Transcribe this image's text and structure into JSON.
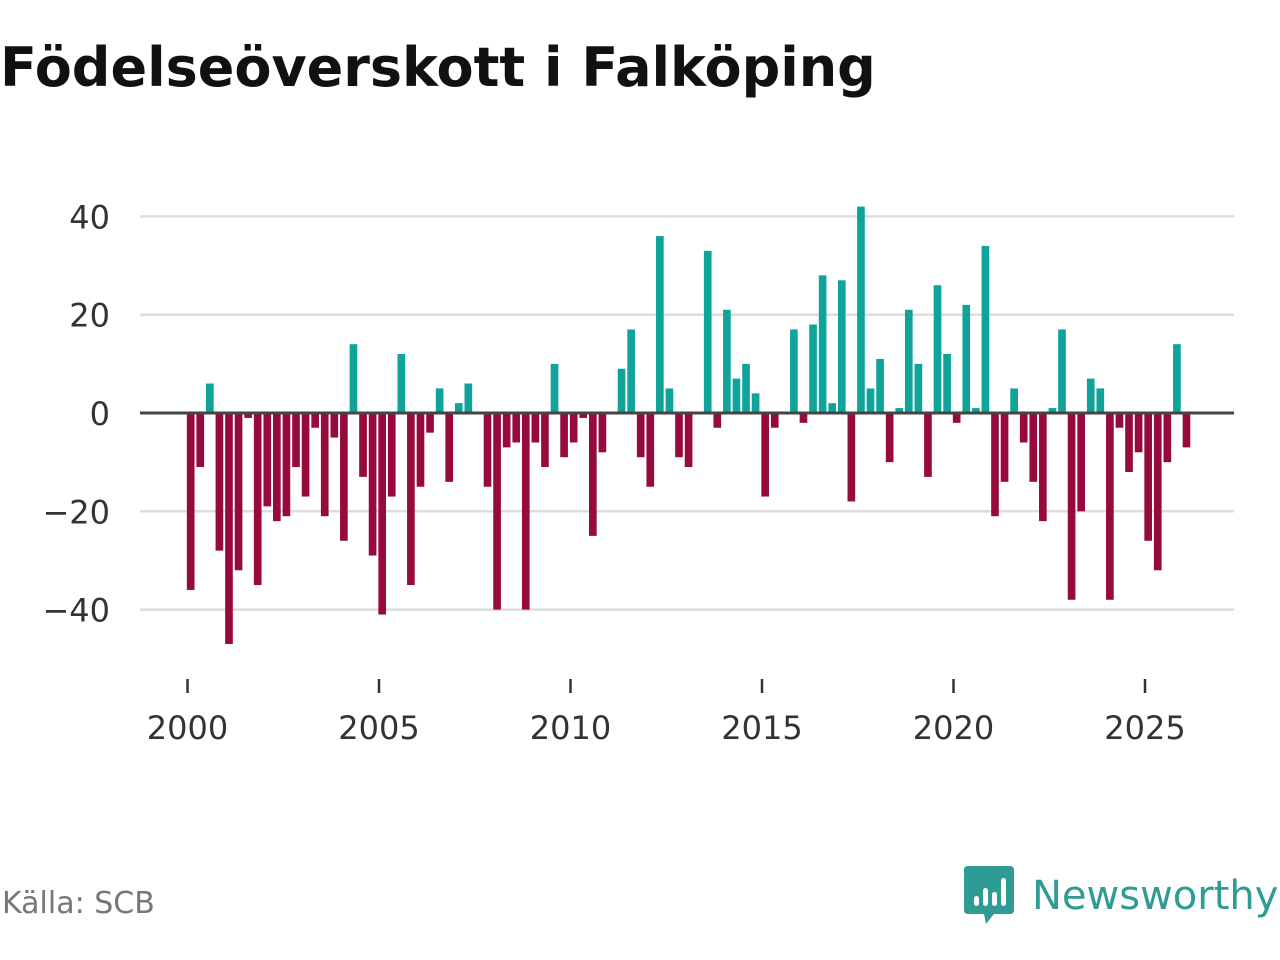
{
  "title": "Födelseöverskott i Falköping",
  "source": "Källa: SCB",
  "logo": {
    "name": "Newsworthy",
    "icon": "newsworthy-bar-chart-icon"
  },
  "colors": {
    "positive": "#0fa39a",
    "negative": "#960a3e",
    "grid": "#dddddd",
    "zero_line": "#444444",
    "axis_text": "#333333",
    "logo": "#2e9c94"
  },
  "chart_data": {
    "type": "bar",
    "title": "Födelseöverskott i Falköping",
    "xlabel": "",
    "ylabel": "",
    "ylim": [
      -47,
      45
    ],
    "xlim": [
      1999.5,
      2027.2
    ],
    "yticks": [
      40,
      20,
      0,
      -20,
      -40
    ],
    "ytick_labels": [
      "40",
      "20",
      "0",
      "−20",
      "−40"
    ],
    "xticks": [
      2000,
      2005,
      2010,
      2015,
      2020,
      2025
    ],
    "xtick_labels": [
      "2000",
      "2005",
      "2010",
      "2015",
      "2020",
      "2025"
    ],
    "grid": true,
    "bar_width_years": 0.2,
    "series": [
      {
        "name": "Födelseöverskott",
        "start": 2000.083,
        "step": 0.25,
        "values": [
          -36,
          -11,
          6,
          -28,
          -47,
          -32,
          -1,
          -35,
          -19,
          -22,
          -21,
          -11,
          -17,
          -3,
          -21,
          -5,
          -26,
          14,
          -13,
          -29,
          -41,
          -17,
          12,
          -35,
          -15,
          -4,
          5,
          -14,
          2,
          6,
          0,
          -15,
          -40,
          -7,
          -6,
          -40,
          -6,
          -11,
          10,
          -9,
          -6,
          -1,
          -25,
          -8,
          0,
          9,
          17,
          -9,
          -15,
          36,
          5,
          -9,
          -11,
          0,
          33,
          -3,
          21,
          7,
          10,
          4,
          -17,
          -3,
          0,
          17,
          -2,
          18,
          28,
          2,
          27,
          -18,
          42,
          5,
          11,
          -10,
          1,
          21,
          10,
          -13,
          26,
          12,
          -2,
          22,
          1,
          34,
          -21,
          -14,
          5,
          -6,
          -14,
          -22,
          1,
          17,
          -38,
          -20,
          7,
          5,
          -38,
          -3,
          -12,
          -8,
          -26,
          -32,
          -10,
          14,
          -7
        ]
      }
    ]
  }
}
